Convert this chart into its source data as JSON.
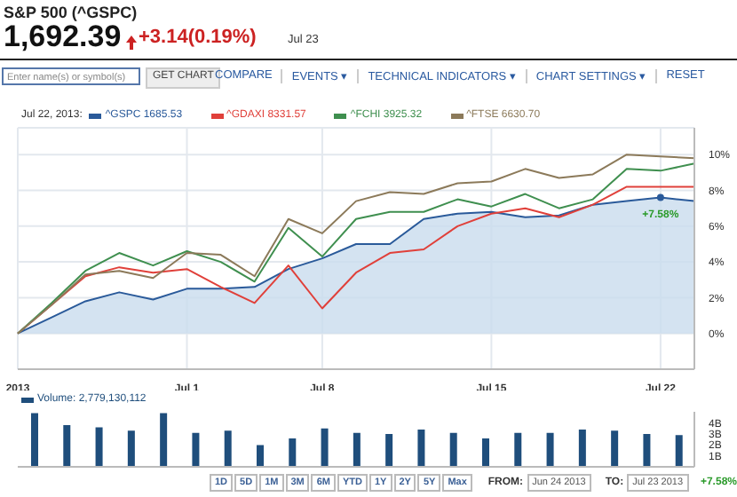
{
  "chart_data": [
    {
      "type": "other",
      "title": "S&P 500 (^GSPC)",
      "subtitle": "1,692.39",
      "annotations": [
        "+3.14(0.19%)",
        "Jul 23",
        "Enter name(s) or symbol(s)",
        "GET CHART",
        "COMPARE",
        "EVENTS ▾",
        "TECHNICAL INDICATORS ▾",
        "CHART SETTINGS ▾",
        "RESET"
      ]
    },
    {
      "type": "line",
      "categories": [
        "2013",
        null,
        null,
        null,
        null,
        "Jul 1",
        null,
        null,
        null,
        "Jul 8",
        null,
        null,
        null,
        null,
        "Jul 15",
        null,
        null,
        null,
        null,
        "Jul 22",
        null
      ],
      "legend_title": "Jul 22, 2013:",
      "legend": "top left",
      "grid": true,
      "marker": "none",
      "line_style": "solid",
      "ylim": [
        -2,
        11.5
      ],
      "yticks": [
        {
          "value": 0,
          "label": "0%"
        },
        {
          "value": 2,
          "label": "2%"
        },
        {
          "value": 4,
          "label": "4%"
        },
        {
          "value": 6,
          "label": "6%"
        },
        {
          "value": 8,
          "label": "8%"
        },
        {
          "value": 10,
          "label": "10%"
        }
      ],
      "series": [
        {
          "name": "^GSPC 1685.53",
          "type": "area",
          "color": "#2a5a9a",
          "values": [
            0,
            0.9,
            1.8,
            2.3,
            1.9,
            2.5,
            2.5,
            2.6,
            3.6,
            4.2,
            5.0,
            5.0,
            6.4,
            6.7,
            6.8,
            6.5,
            6.6,
            7.2,
            7.4,
            7.6,
            7.4
          ]
        },
        {
          "name": "^GDAXI 8331.57",
          "color": "#e0403a",
          "values": [
            0,
            1.6,
            3.2,
            3.7,
            3.4,
            3.6,
            2.6,
            1.7,
            3.8,
            1.4,
            3.4,
            4.5,
            4.7,
            6.0,
            6.7,
            7.0,
            6.5,
            7.2,
            8.2,
            8.2,
            8.2
          ]
        },
        {
          "name": "^FCHI 3925.32",
          "color": "#3f8f4f",
          "values": [
            0,
            1.7,
            3.5,
            4.5,
            3.8,
            4.6,
            4.0,
            2.9,
            5.9,
            4.3,
            6.4,
            6.8,
            6.8,
            7.5,
            7.1,
            7.8,
            7.0,
            7.5,
            9.2,
            9.1,
            9.5
          ]
        },
        {
          "name": "^FTSE 6630.70",
          "color": "#8c7a5a",
          "values": [
            0,
            1.6,
            3.3,
            3.5,
            3.1,
            4.5,
            4.4,
            3.2,
            6.4,
            5.6,
            7.4,
            7.9,
            7.8,
            8.4,
            8.5,
            9.2,
            8.7,
            8.9,
            10.0,
            9.9,
            9.8
          ]
        }
      ],
      "annotations": [
        {
          "text": "+7.58%",
          "x": "Jul 22",
          "y": 7.6
        }
      ]
    },
    {
      "type": "bar",
      "categories": [
        null,
        null,
        null,
        null,
        null,
        null,
        null,
        null,
        null,
        null,
        null,
        null,
        null,
        null,
        null,
        null,
        null,
        null,
        null,
        null,
        null
      ],
      "legend": "top left",
      "ylim": [
        0,
        5
      ],
      "yticks": [
        {
          "value": 1,
          "label": "1B"
        },
        {
          "value": 2,
          "label": "2B"
        },
        {
          "value": 3,
          "label": "3B"
        },
        {
          "value": 4,
          "label": "4B"
        }
      ],
      "series": [
        {
          "name": "Volume: 2,779,130,112",
          "color": "#1f4e7c",
          "values": [
            4.8,
            3.7,
            3.5,
            3.2,
            4.8,
            3.0,
            3.2,
            1.9,
            2.5,
            3.4,
            3.0,
            2.9,
            3.3,
            3.0,
            2.5,
            3.0,
            3.0,
            3.3,
            3.2,
            2.9,
            2.8
          ]
        }
      ]
    },
    {
      "type": "other",
      "annotations": [
        "1D",
        "5D",
        "1M",
        "3M",
        "6M",
        "YTD",
        "1Y",
        "2Y",
        "5Y",
        "Max",
        "FROM:",
        "Jun 24 2013",
        "TO:",
        "Jul 23 2013",
        "+7.58%"
      ]
    }
  ]
}
